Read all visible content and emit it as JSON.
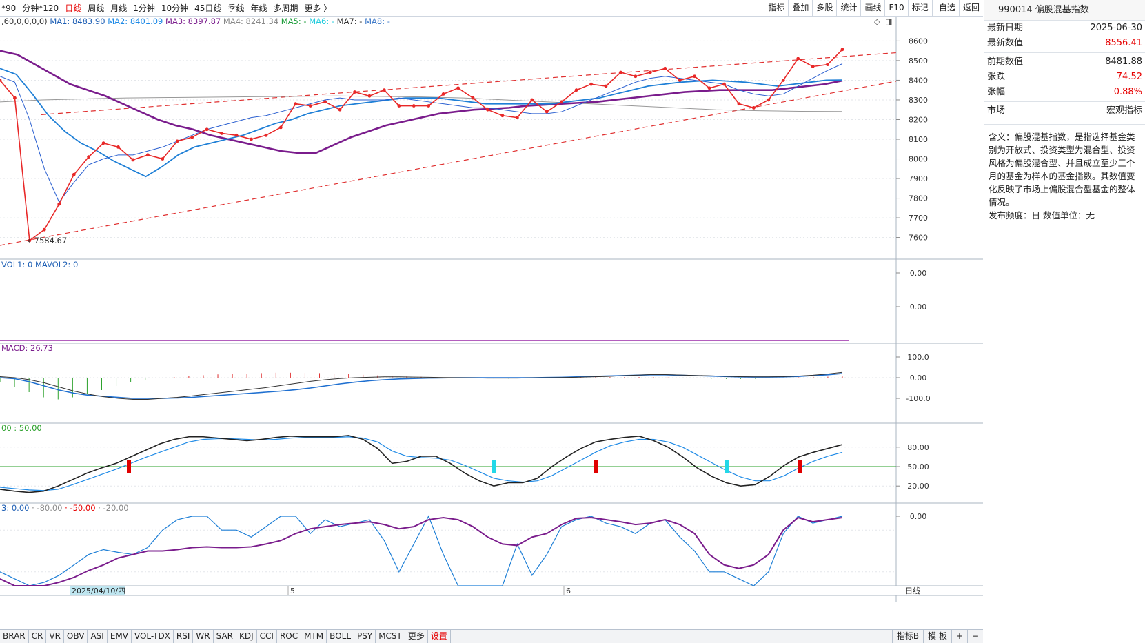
{
  "toolbar": {
    "periods": [
      "*90",
      "分钟*120",
      "日线",
      "周线",
      "月线",
      "1分钟",
      "10分钟",
      "45日线",
      "季线",
      "年线",
      "多周期",
      "更多 〉"
    ],
    "active_period": "日线",
    "tools": [
      "指标",
      "叠加",
      "多股",
      "统计",
      "画线",
      "F10",
      "标记",
      "-自选",
      "返回"
    ]
  },
  "main_chart": {
    "params": ",60,0,0,0,0)",
    "ma_labels": [
      {
        "label": "MA1: 8483.90",
        "color": "#1e5fb4"
      },
      {
        "label": "MA2: 8401.09",
        "color": "#1e8ae6"
      },
      {
        "label": "MA3: 8397.87",
        "color": "#7a1c8c"
      },
      {
        "label": "MA4: 8241.34",
        "color": "#888888"
      },
      {
        "label": "MA5: -",
        "color": "#1f9e3c"
      },
      {
        "label": "MA6: -",
        "color": "#22ccdd"
      },
      {
        "label": "MA7: -",
        "color": "#333333"
      },
      {
        "label": "MA8: -",
        "color": "#3c78c8"
      }
    ],
    "y_ticks": [
      "8600",
      "8500",
      "8400",
      "8300",
      "8200",
      "8100",
      "8000",
      "7900",
      "7800",
      "7700",
      "7600"
    ],
    "min_label": "←7584.67",
    "price": [
      8400,
      8310,
      7584.67,
      7640,
      7770,
      7920,
      8010,
      8080,
      8060,
      7995,
      8020,
      8000,
      8090,
      8110,
      8150,
      8130,
      8120,
      8100,
      8120,
      8160,
      8280,
      8270,
      8290,
      8250,
      8340,
      8320,
      8350,
      8270,
      8270,
      8270,
      8330,
      8360,
      8310,
      8250,
      8220,
      8210,
      8300,
      8240,
      8290,
      8350,
      8380,
      8370,
      8440,
      8420,
      8440,
      8460,
      8400,
      8420,
      8360,
      8380,
      8280,
      8260,
      8300,
      8400,
      8510,
      8470,
      8480,
      8556.41
    ],
    "ma1": [
      8420,
      8390,
      8200,
      7950,
      7780,
      7880,
      7970,
      8000,
      8020,
      8020,
      8040,
      8060,
      8090,
      8120,
      8150,
      8170,
      8190,
      8210,
      8220,
      8240,
      8260,
      8280,
      8300,
      8310,
      8300,
      8300,
      8300,
      8310,
      8300,
      8290,
      8280,
      8270,
      8260,
      8260,
      8250,
      8240,
      8230,
      8230,
      8240,
      8270,
      8300,
      8330,
      8360,
      8390,
      8410,
      8420,
      8410,
      8400,
      8390,
      8380,
      8350,
      8330,
      8320,
      8330,
      8370,
      8410,
      8450,
      8483.9
    ],
    "ma2": [
      8460,
      8430,
      8330,
      8220,
      8140,
      8080,
      8040,
      7990,
      7950,
      7910,
      7960,
      8020,
      8060,
      8080,
      8100,
      8120,
      8150,
      8180,
      8200,
      8230,
      8250,
      8270,
      8280,
      8290,
      8300,
      8310,
      8310,
      8310,
      8300,
      8290,
      8280,
      8280,
      8280,
      8280,
      8280,
      8290,
      8300,
      8310,
      8330,
      8350,
      8370,
      8380,
      8390,
      8395,
      8400,
      8395,
      8390,
      8380,
      8370,
      8380,
      8390,
      8400,
      8401.09
    ],
    "ma3": [
      8550,
      8530,
      8480,
      8430,
      8380,
      8350,
      8320,
      8280,
      8240,
      8200,
      8170,
      8150,
      8120,
      8100,
      8080,
      8060,
      8040,
      8030,
      8030,
      8070,
      8110,
      8140,
      8170,
      8190,
      8210,
      8230,
      8240,
      8250,
      8255,
      8260,
      8270,
      8275,
      8280,
      8285,
      8290,
      8300,
      8310,
      8320,
      8330,
      8340,
      8345,
      8350,
      8350,
      8350,
      8350,
      8360,
      8370,
      8380,
      8397.87
    ],
    "ma4": [
      8290,
      8300,
      8305,
      8310,
      8312,
      8314,
      8316,
      8318,
      8320,
      8318,
      8315,
      8310,
      8300,
      8290,
      8280,
      8270,
      8260,
      8250,
      8245,
      8242,
      8241.34
    ]
  },
  "volume_chart": {
    "label": "VOL1: 0  MAVOL2: 0",
    "y_ticks": [
      "0.00",
      "0.00"
    ]
  },
  "macd_chart": {
    "label": "MACD: 26.73",
    "y_ticks": [
      "100.0",
      "0.00",
      "-100.0"
    ]
  },
  "kdj_chart": {
    "label": "00 : 50.00",
    "y_ticks": [
      "80.00",
      "50.00",
      "20.00"
    ]
  },
  "wr_chart": {
    "label_parts": [
      {
        "text": "3: 0.00",
        "color": "#1e5fb4"
      },
      {
        "text": " · -80.00",
        "color": "#888888"
      },
      {
        "text": " · -50.00",
        "color": "#e60000"
      },
      {
        "text": " · -20.00",
        "color": "#888888"
      }
    ],
    "y_ticks": [
      "0.00"
    ]
  },
  "x_axis": {
    "date_highlight": "2025/04/10/四",
    "month_labels": [
      "5",
      "6"
    ],
    "period_label": "日线"
  },
  "right_panel": {
    "title": "990014 偏股混基指数",
    "rows": [
      {
        "key": "最新日期",
        "value": "2025-06-30",
        "red": false
      },
      {
        "key": "最新数值",
        "value": "8556.41",
        "red": true
      }
    ],
    "rows2": [
      {
        "key": "前期数值",
        "value": "8481.88",
        "red": false
      },
      {
        "key": "张跌",
        "value": "74.52",
        "red": true
      },
      {
        "key": "张幅",
        "value": "0.88%",
        "red": true
      }
    ],
    "rows3": [
      {
        "key": "市场",
        "value": "宏观指标",
        "red": false
      }
    ],
    "description": "含义：偏股混基指数，是指选择基金类别为开放式、投资类型为混合型、投资风格为偏股混合型、并且成立至少三个月的基金为样本的基金指数。其数值变化反映了市场上偏股混合型基金的整体情况。",
    "frequency": "发布频度：日     数值单位：无"
  },
  "bottom_tabs": [
    "BRAR",
    "CR",
    "VR",
    "OBV",
    "ASI",
    "EMV",
    "VOL-TDX",
    "RSI",
    "WR",
    "SAR",
    "KDJ",
    "CCI",
    "ROC",
    "MTM",
    "BOLL",
    "PSY",
    "MCST",
    "更多",
    "设置"
  ],
  "bottom_right": [
    "指标B",
    "模 板",
    "+",
    "−"
  ]
}
